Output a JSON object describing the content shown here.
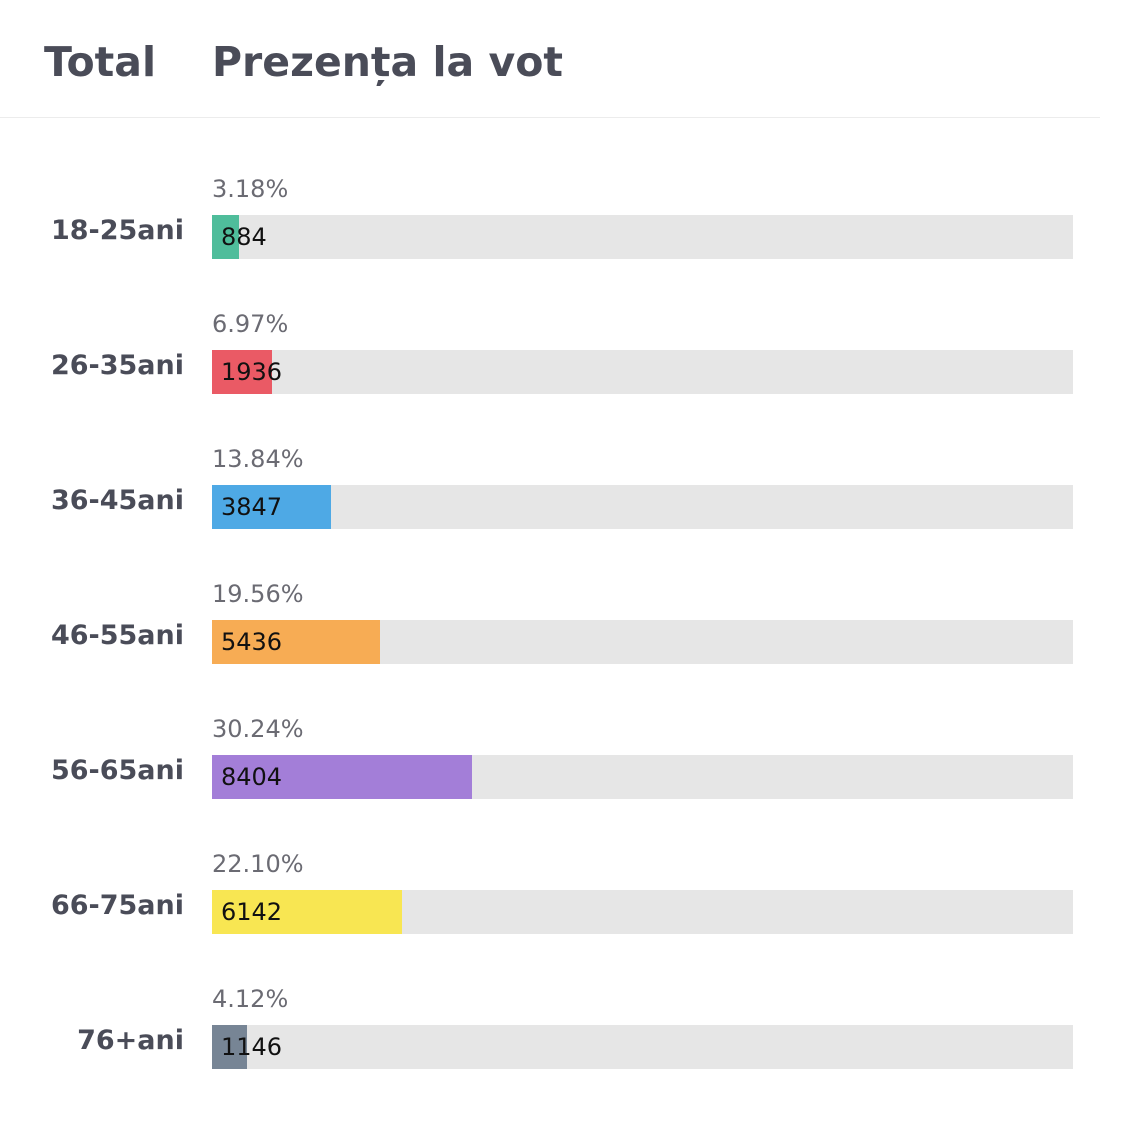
{
  "header": {
    "total_label": "Total",
    "title": "Prezența la vot"
  },
  "chart_data": {
    "type": "bar",
    "orientation": "horizontal",
    "title": "Prezența la vot",
    "categories": [
      "18-25ani",
      "26-35ani",
      "36-45ani",
      "46-55ani",
      "56-65ani",
      "66-75ani",
      "76+ani"
    ],
    "values": [
      884,
      1936,
      3847,
      5436,
      8404,
      6142,
      1146
    ],
    "percent_labels": [
      "3.18%",
      "6.97%",
      "13.84%",
      "19.56%",
      "30.24%",
      "22.10%",
      "4.12%"
    ],
    "fill_fractions": [
      0.0318,
      0.0697,
      0.1384,
      0.1956,
      0.3024,
      0.221,
      0.0412
    ],
    "colors": [
      "#4fbd9b",
      "#ea5a65",
      "#4ea9e5",
      "#f7ac54",
      "#a37ed8",
      "#f8e652",
      "#778595"
    ],
    "track_color": "#e6e6e6",
    "grid": false
  }
}
